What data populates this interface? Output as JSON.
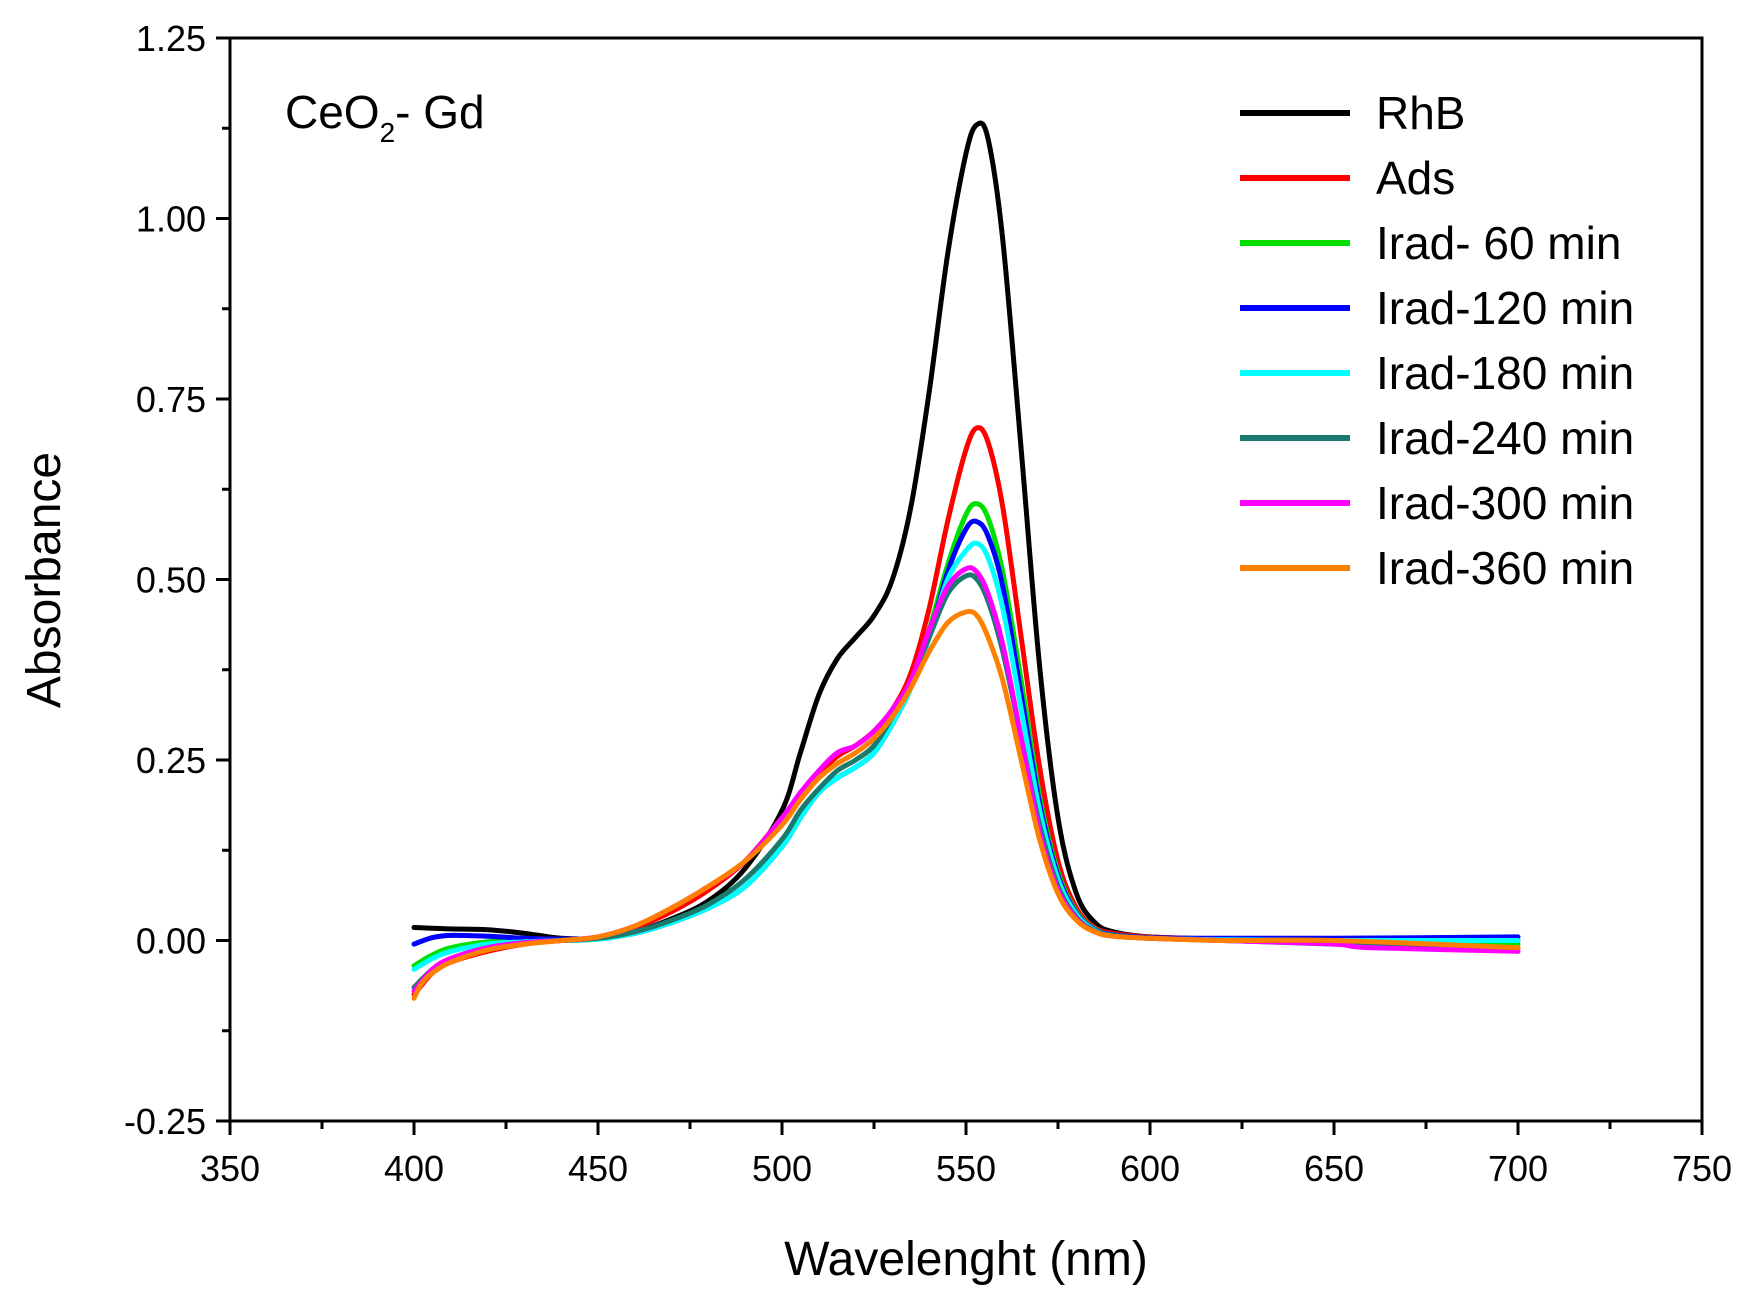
{
  "chart_data": {
    "type": "line",
    "title": "",
    "annotation": {
      "main": "CeO",
      "sub": "2",
      "rest": "- Gd"
    },
    "xlabel": "Wavelenght  (nm)",
    "ylabel": "Absorbance",
    "xlim": [
      350,
      750
    ],
    "ylim": [
      -0.25,
      1.25
    ],
    "xticks": [
      350,
      400,
      450,
      500,
      550,
      600,
      650,
      700,
      750
    ],
    "xtick_labels": [
      "350",
      "400",
      "450",
      "500",
      "550",
      "600",
      "650",
      "700",
      "750"
    ],
    "yticks": [
      -0.25,
      0,
      0.25,
      0.5,
      0.75,
      1.0,
      1.25
    ],
    "ytick_labels": [
      "-0.25",
      "0.00",
      "0.25",
      "0.50",
      "0.75",
      "1.00",
      "1.25"
    ],
    "legend_position": "top-right",
    "grid": false,
    "series": [
      {
        "name": "RhB",
        "color": "#000000",
        "points": [
          [
            400,
            0.018
          ],
          [
            410,
            0.016
          ],
          [
            420,
            0.015
          ],
          [
            430,
            0.01
          ],
          [
            440,
            0.003
          ],
          [
            450,
            0.003
          ],
          [
            460,
            0.012
          ],
          [
            470,
            0.03
          ],
          [
            480,
            0.055
          ],
          [
            490,
            0.1
          ],
          [
            500,
            0.18
          ],
          [
            505,
            0.26
          ],
          [
            510,
            0.34
          ],
          [
            515,
            0.39
          ],
          [
            520,
            0.42
          ],
          [
            525,
            0.45
          ],
          [
            530,
            0.5
          ],
          [
            535,
            0.6
          ],
          [
            540,
            0.76
          ],
          [
            545,
            0.95
          ],
          [
            550,
            1.09
          ],
          [
            553,
            1.13
          ],
          [
            556,
            1.11
          ],
          [
            560,
            0.97
          ],
          [
            565,
            0.68
          ],
          [
            570,
            0.38
          ],
          [
            575,
            0.17
          ],
          [
            580,
            0.065
          ],
          [
            585,
            0.025
          ],
          [
            590,
            0.012
          ],
          [
            600,
            0.005
          ],
          [
            620,
            0.002
          ],
          [
            650,
            0.001
          ],
          [
            700,
            0.0
          ]
        ]
      },
      {
        "name": "Ads",
        "color": "#ff0000",
        "points": [
          [
            400,
            -0.075
          ],
          [
            405,
            -0.045
          ],
          [
            410,
            -0.03
          ],
          [
            420,
            -0.015
          ],
          [
            430,
            -0.005
          ],
          [
            440,
            0.0
          ],
          [
            450,
            0.005
          ],
          [
            460,
            0.018
          ],
          [
            470,
            0.04
          ],
          [
            480,
            0.07
          ],
          [
            490,
            0.11
          ],
          [
            500,
            0.17
          ],
          [
            505,
            0.2
          ],
          [
            510,
            0.23
          ],
          [
            515,
            0.255
          ],
          [
            520,
            0.27
          ],
          [
            525,
            0.29
          ],
          [
            530,
            0.32
          ],
          [
            535,
            0.37
          ],
          [
            540,
            0.46
          ],
          [
            545,
            0.58
          ],
          [
            550,
            0.68
          ],
          [
            553,
            0.71
          ],
          [
            556,
            0.69
          ],
          [
            560,
            0.6
          ],
          [
            565,
            0.42
          ],
          [
            570,
            0.24
          ],
          [
            575,
            0.11
          ],
          [
            580,
            0.045
          ],
          [
            585,
            0.018
          ],
          [
            590,
            0.01
          ],
          [
            600,
            0.005
          ],
          [
            620,
            0.002
          ],
          [
            650,
            0.0
          ],
          [
            700,
            -0.01
          ]
        ]
      },
      {
        "name": "Irad- 60 min",
        "color": "#00e000",
        "points": [
          [
            400,
            -0.035
          ],
          [
            405,
            -0.02
          ],
          [
            410,
            -0.01
          ],
          [
            420,
            -0.002
          ],
          [
            430,
            0.0
          ],
          [
            440,
            0.0
          ],
          [
            450,
            0.002
          ],
          [
            460,
            0.01
          ],
          [
            470,
            0.025
          ],
          [
            480,
            0.045
          ],
          [
            490,
            0.075
          ],
          [
            500,
            0.13
          ],
          [
            505,
            0.17
          ],
          [
            510,
            0.205
          ],
          [
            515,
            0.225
          ],
          [
            520,
            0.24
          ],
          [
            525,
            0.26
          ],
          [
            530,
            0.3
          ],
          [
            535,
            0.35
          ],
          [
            540,
            0.43
          ],
          [
            545,
            0.52
          ],
          [
            550,
            0.59
          ],
          [
            553,
            0.605
          ],
          [
            556,
            0.585
          ],
          [
            560,
            0.51
          ],
          [
            565,
            0.36
          ],
          [
            570,
            0.2
          ],
          [
            575,
            0.095
          ],
          [
            580,
            0.04
          ],
          [
            585,
            0.016
          ],
          [
            590,
            0.008
          ],
          [
            600,
            0.004
          ],
          [
            620,
            0.002
          ],
          [
            650,
            0.0
          ],
          [
            700,
            -0.005
          ]
        ]
      },
      {
        "name": "Irad-120 min",
        "color": "#0000ff",
        "points": [
          [
            400,
            -0.005
          ],
          [
            405,
            0.004
          ],
          [
            410,
            0.007
          ],
          [
            420,
            0.006
          ],
          [
            430,
            0.003
          ],
          [
            440,
            0.002
          ],
          [
            450,
            0.003
          ],
          [
            460,
            0.01
          ],
          [
            470,
            0.025
          ],
          [
            480,
            0.045
          ],
          [
            490,
            0.075
          ],
          [
            500,
            0.13
          ],
          [
            505,
            0.17
          ],
          [
            510,
            0.205
          ],
          [
            515,
            0.225
          ],
          [
            520,
            0.24
          ],
          [
            525,
            0.26
          ],
          [
            530,
            0.3
          ],
          [
            535,
            0.35
          ],
          [
            540,
            0.42
          ],
          [
            545,
            0.51
          ],
          [
            550,
            0.57
          ],
          [
            553,
            0.58
          ],
          [
            556,
            0.56
          ],
          [
            560,
            0.49
          ],
          [
            565,
            0.34
          ],
          [
            570,
            0.19
          ],
          [
            575,
            0.09
          ],
          [
            580,
            0.038
          ],
          [
            585,
            0.015
          ],
          [
            590,
            0.008
          ],
          [
            600,
            0.004
          ],
          [
            620,
            0.003
          ],
          [
            650,
            0.003
          ],
          [
            700,
            0.005
          ]
        ]
      },
      {
        "name": "Irad-180 min",
        "color": "#00ffff",
        "points": [
          [
            400,
            -0.04
          ],
          [
            405,
            -0.025
          ],
          [
            410,
            -0.015
          ],
          [
            420,
            -0.005
          ],
          [
            430,
            -0.002
          ],
          [
            440,
            0.0
          ],
          [
            450,
            0.002
          ],
          [
            460,
            0.01
          ],
          [
            470,
            0.025
          ],
          [
            480,
            0.045
          ],
          [
            490,
            0.075
          ],
          [
            500,
            0.13
          ],
          [
            505,
            0.17
          ],
          [
            510,
            0.205
          ],
          [
            515,
            0.225
          ],
          [
            520,
            0.24
          ],
          [
            525,
            0.26
          ],
          [
            530,
            0.3
          ],
          [
            535,
            0.35
          ],
          [
            540,
            0.42
          ],
          [
            545,
            0.5
          ],
          [
            550,
            0.54
          ],
          [
            553,
            0.55
          ],
          [
            556,
            0.53
          ],
          [
            560,
            0.46
          ],
          [
            565,
            0.32
          ],
          [
            570,
            0.18
          ],
          [
            575,
            0.085
          ],
          [
            580,
            0.036
          ],
          [
            585,
            0.014
          ],
          [
            590,
            0.007
          ],
          [
            600,
            0.003
          ],
          [
            620,
            0.001
          ],
          [
            650,
            0.0
          ],
          [
            700,
            0.0
          ]
        ]
      },
      {
        "name": "Irad-240 min",
        "color": "#1a7a6e",
        "points": [
          [
            400,
            -0.065
          ],
          [
            405,
            -0.04
          ],
          [
            410,
            -0.025
          ],
          [
            420,
            -0.01
          ],
          [
            430,
            -0.003
          ],
          [
            440,
            0.0
          ],
          [
            450,
            0.003
          ],
          [
            460,
            0.012
          ],
          [
            470,
            0.028
          ],
          [
            480,
            0.05
          ],
          [
            490,
            0.085
          ],
          [
            500,
            0.14
          ],
          [
            505,
            0.18
          ],
          [
            510,
            0.21
          ],
          [
            515,
            0.235
          ],
          [
            520,
            0.25
          ],
          [
            525,
            0.27
          ],
          [
            530,
            0.31
          ],
          [
            535,
            0.36
          ],
          [
            540,
            0.42
          ],
          [
            545,
            0.48
          ],
          [
            550,
            0.505
          ],
          [
            553,
            0.5
          ],
          [
            556,
            0.47
          ],
          [
            560,
            0.4
          ],
          [
            565,
            0.28
          ],
          [
            570,
            0.16
          ],
          [
            575,
            0.075
          ],
          [
            580,
            0.032
          ],
          [
            585,
            0.013
          ],
          [
            590,
            0.007
          ],
          [
            600,
            0.003
          ],
          [
            620,
            0.0
          ],
          [
            650,
            -0.005
          ],
          [
            700,
            -0.015
          ]
        ]
      },
      {
        "name": "Irad-300 min",
        "color": "#ff00ff",
        "points": [
          [
            400,
            -0.07
          ],
          [
            405,
            -0.04
          ],
          [
            410,
            -0.025
          ],
          [
            420,
            -0.01
          ],
          [
            430,
            -0.003
          ],
          [
            440,
            0.0
          ],
          [
            450,
            0.005
          ],
          [
            460,
            0.02
          ],
          [
            470,
            0.045
          ],
          [
            480,
            0.075
          ],
          [
            490,
            0.11
          ],
          [
            500,
            0.17
          ],
          [
            505,
            0.205
          ],
          [
            510,
            0.235
          ],
          [
            515,
            0.26
          ],
          [
            520,
            0.27
          ],
          [
            525,
            0.29
          ],
          [
            530,
            0.32
          ],
          [
            535,
            0.36
          ],
          [
            540,
            0.43
          ],
          [
            545,
            0.49
          ],
          [
            550,
            0.515
          ],
          [
            553,
            0.51
          ],
          [
            556,
            0.48
          ],
          [
            560,
            0.41
          ],
          [
            565,
            0.28
          ],
          [
            570,
            0.15
          ],
          [
            575,
            0.07
          ],
          [
            580,
            0.03
          ],
          [
            585,
            0.012
          ],
          [
            590,
            0.006
          ],
          [
            600,
            0.003
          ],
          [
            620,
            0.0
          ],
          [
            650,
            -0.005
          ],
          [
            660,
            -0.01
          ],
          [
            700,
            -0.015
          ]
        ]
      },
      {
        "name": "Irad-360 min",
        "color": "#ff8000",
        "points": [
          [
            400,
            -0.08
          ],
          [
            402,
            -0.06
          ],
          [
            405,
            -0.045
          ],
          [
            410,
            -0.03
          ],
          [
            420,
            -0.013
          ],
          [
            430,
            -0.005
          ],
          [
            440,
            0.0
          ],
          [
            450,
            0.005
          ],
          [
            460,
            0.02
          ],
          [
            470,
            0.045
          ],
          [
            480,
            0.075
          ],
          [
            490,
            0.11
          ],
          [
            500,
            0.16
          ],
          [
            505,
            0.195
          ],
          [
            510,
            0.225
          ],
          [
            515,
            0.245
          ],
          [
            520,
            0.26
          ],
          [
            525,
            0.28
          ],
          [
            530,
            0.31
          ],
          [
            535,
            0.35
          ],
          [
            540,
            0.4
          ],
          [
            545,
            0.44
          ],
          [
            550,
            0.455
          ],
          [
            553,
            0.45
          ],
          [
            556,
            0.42
          ],
          [
            560,
            0.36
          ],
          [
            565,
            0.25
          ],
          [
            570,
            0.14
          ],
          [
            575,
            0.065
          ],
          [
            580,
            0.028
          ],
          [
            585,
            0.012
          ],
          [
            590,
            0.006
          ],
          [
            600,
            0.003
          ],
          [
            620,
            0.0
          ],
          [
            650,
            0.0
          ],
          [
            700,
            -0.01
          ]
        ]
      }
    ]
  }
}
